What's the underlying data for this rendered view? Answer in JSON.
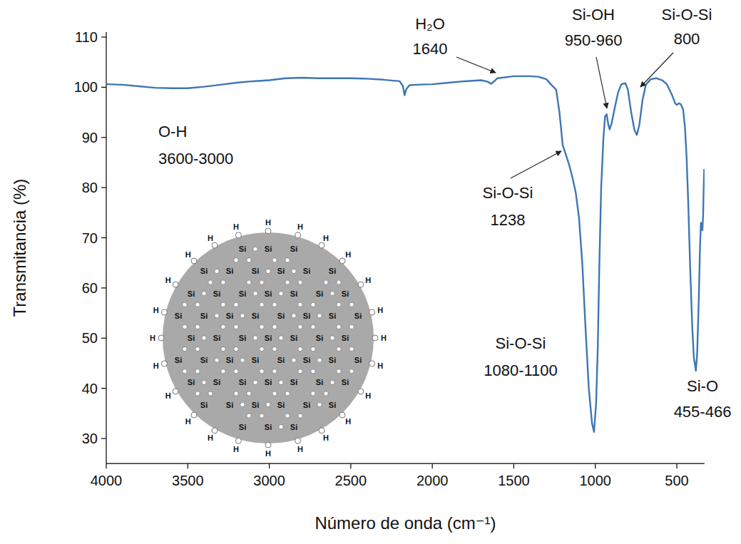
{
  "chart_data": {
    "type": "line",
    "x_label": "Número de onda (cm⁻¹)",
    "y_label": "Transmitancia (%)",
    "color": "#3d76b4",
    "xlim": [
      4000,
      330
    ],
    "xticks": [
      4000,
      3500,
      3000,
      2500,
      2000,
      1500,
      1000,
      500
    ],
    "ylim": [
      25,
      111
    ],
    "yticks": [
      30,
      40,
      50,
      60,
      70,
      80,
      90,
      100,
      110
    ],
    "grid": false,
    "x": [
      4000,
      3900,
      3800,
      3700,
      3600,
      3500,
      3400,
      3300,
      3200,
      3100,
      3000,
      2900,
      2800,
      2700,
      2600,
      2500,
      2400,
      2300,
      2200,
      2180,
      2170,
      2160,
      2140,
      2100,
      2000,
      1900,
      1800,
      1700,
      1660,
      1640,
      1620,
      1600,
      1500,
      1400,
      1350,
      1300,
      1270,
      1240,
      1220,
      1200,
      1180,
      1160,
      1140,
      1120,
      1100,
      1080,
      1060,
      1040,
      1020,
      1008,
      995,
      985,
      975,
      964,
      950,
      940,
      930,
      920,
      912,
      900,
      880,
      860,
      840,
      815,
      800,
      780,
      760,
      745,
      730,
      710,
      690,
      660,
      627,
      590,
      561,
      530,
      510,
      500,
      487,
      475,
      461,
      450,
      440,
      430,
      418,
      405,
      395,
      383,
      375,
      365,
      358,
      352,
      347,
      343,
      338,
      335,
      332
    ],
    "values": [
      100.6,
      100.5,
      100.2,
      99.9,
      99.8,
      99.8,
      100.1,
      100.5,
      100.9,
      101.2,
      101.4,
      101.8,
      101.9,
      101.8,
      101.8,
      101.8,
      101.7,
      101.5,
      101.2,
      100.2,
      98.4,
      99.6,
      100.4,
      100.5,
      100.6,
      100.9,
      101.2,
      101.4,
      101.1,
      100.7,
      101.2,
      101.8,
      102.2,
      102.2,
      102.1,
      101.6,
      100.5,
      99.5,
      95,
      88.5,
      86.5,
      84.5,
      82,
      79,
      74,
      65,
      52,
      40,
      33,
      31.3,
      37,
      48,
      65,
      80,
      90,
      94.2,
      94.6,
      92.5,
      91.6,
      92.8,
      96,
      99,
      100.6,
      100.8,
      99.5,
      95,
      91.5,
      90.5,
      92.5,
      97.5,
      100.5,
      101.6,
      101.8,
      101.4,
      100.6,
      98.5,
      96.8,
      96.5,
      96.8,
      96.6,
      95.5,
      92,
      86,
      77,
      64,
      52,
      46,
      43.5,
      47,
      58,
      68,
      73,
      72.5,
      71.5,
      75,
      80,
      83.7
    ],
    "annotations": [
      {
        "lines": [
          "O-H",
          "3600-3000"
        ]
      },
      {
        "lines": [
          "H₂O",
          "1640"
        ]
      },
      {
        "lines": [
          "Si-OH",
          "950-960"
        ]
      },
      {
        "lines": [
          "Si-O-Si",
          "800"
        ]
      },
      {
        "lines": [
          "Si-O-Si",
          "1238"
        ]
      },
      {
        "lines": [
          "Si-O-Si",
          "1080-1100"
        ]
      },
      {
        "lines": [
          "Si-O",
          "455-466"
        ]
      }
    ],
    "inset": {
      "atom": "Si",
      "terminal": "H"
    }
  }
}
